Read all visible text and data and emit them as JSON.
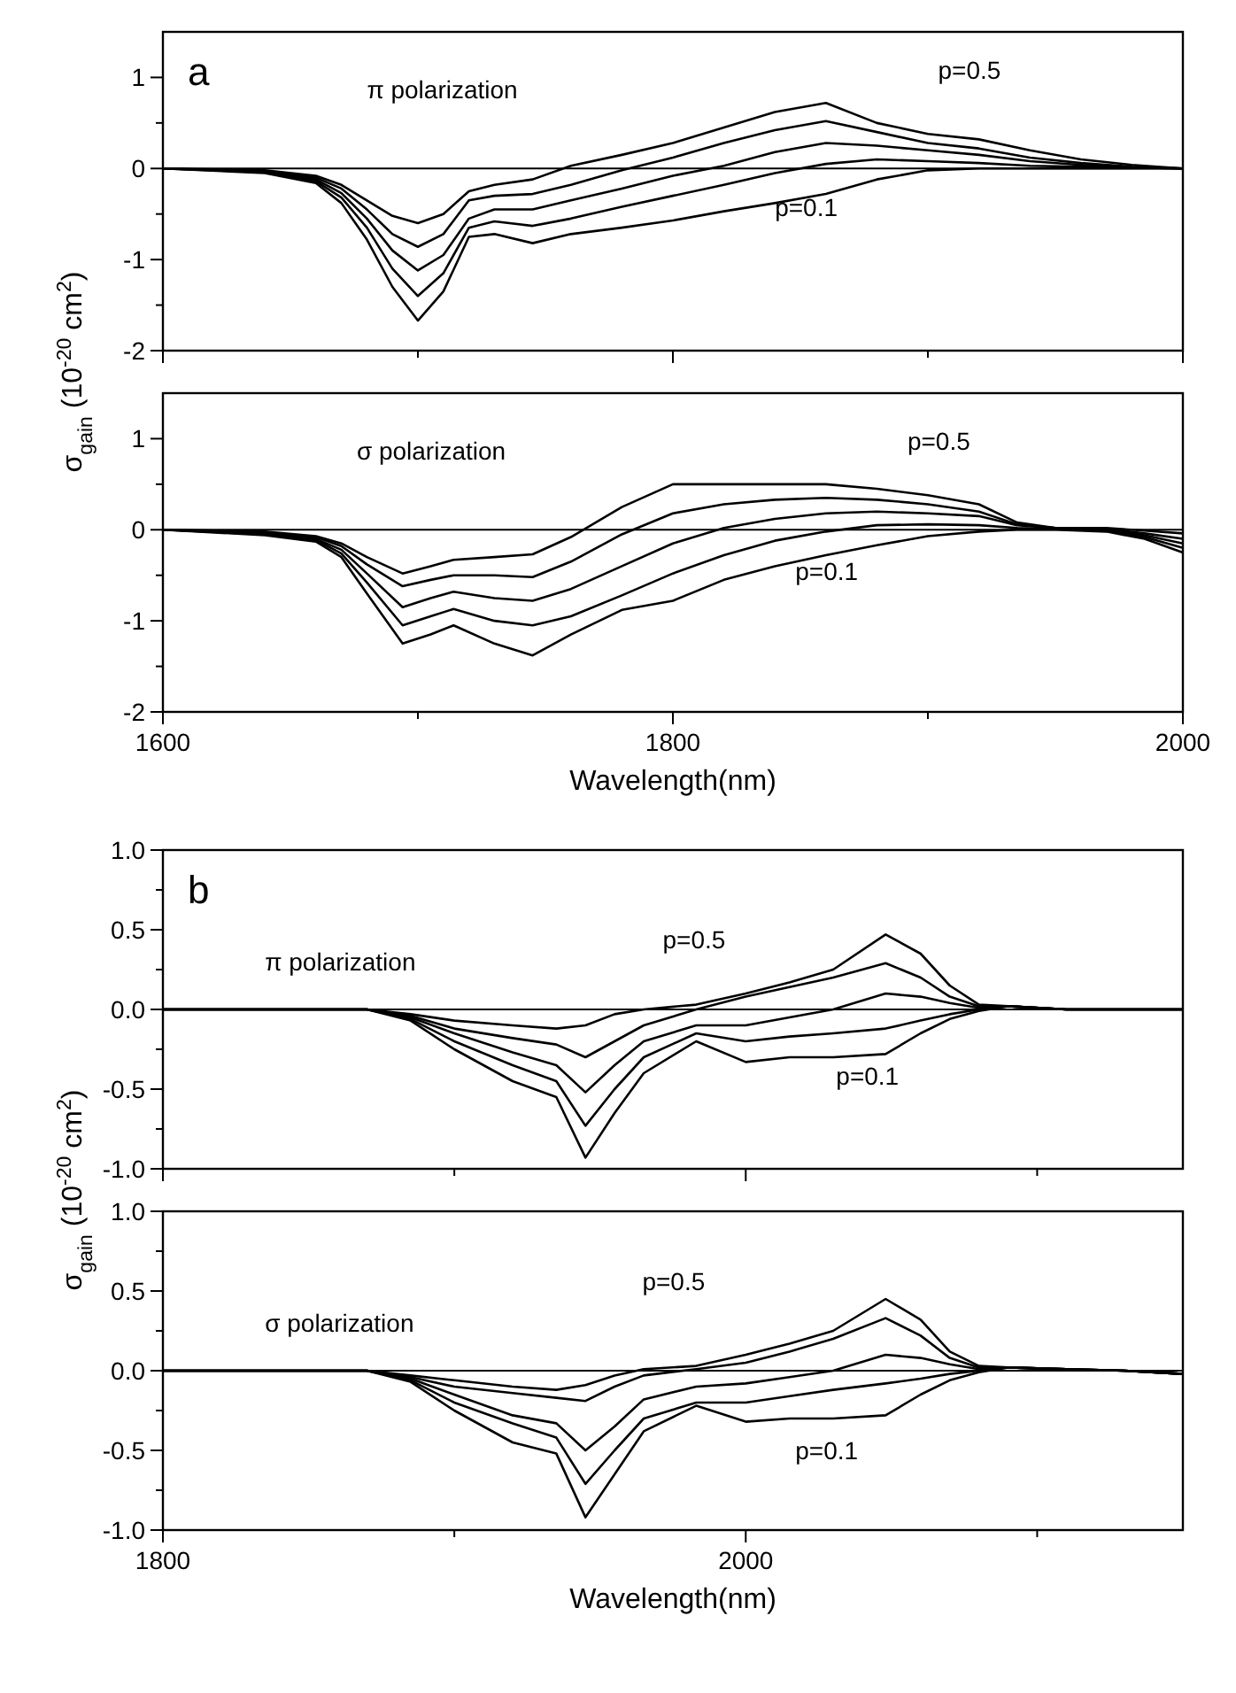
{
  "chart_data": [
    {
      "type": "line",
      "title": "a",
      "ylabel": "σ$_{gain}$ (10$^{-20}$ cm$^{2}$)",
      "tick_labels": "y",
      "xlim": [
        1600,
        2000
      ],
      "ylim": [
        -2,
        1.5
      ],
      "xticks": [
        1600,
        {
          "value": 1700,
          "label": null
        },
        1800,
        {
          "value": 1900,
          "label": null
        },
        2000
      ],
      "yticks": [
        -2,
        {
          "value": -1.5,
          "label": null
        },
        -1,
        {
          "value": -0.5,
          "label": null
        },
        0,
        {
          "value": 0.5,
          "label": null
        },
        1
      ],
      "x": [
        1600,
        1640,
        1660,
        1670,
        1680,
        1690,
        1700,
        1710,
        1720,
        1730,
        1745,
        1760,
        1780,
        1800,
        1820,
        1840,
        1860,
        1880,
        1900,
        1920,
        1940,
        1960,
        1980,
        2000
      ],
      "series": [
        {
          "color": "#000000",
          "values": [
            0,
            -0.02,
            -0.08,
            -0.18,
            -0.35,
            -0.52,
            -0.6,
            -0.5,
            -0.25,
            -0.18,
            -0.12,
            0.03,
            0.15,
            0.28,
            0.45,
            0.62,
            0.72,
            0.5,
            0.38,
            0.32,
            0.2,
            0.1,
            0.04,
            0
          ]
        },
        {
          "color": "#000000",
          "values": [
            0,
            -0.03,
            -0.1,
            -0.22,
            -0.45,
            -0.72,
            -0.86,
            -0.72,
            -0.35,
            -0.3,
            -0.28,
            -0.18,
            -0.02,
            0.12,
            0.28,
            0.42,
            0.52,
            0.4,
            0.28,
            0.22,
            0.12,
            0.06,
            0.02,
            0
          ]
        },
        {
          "color": "#000000",
          "values": [
            0,
            -0.03,
            -0.12,
            -0.27,
            -0.55,
            -0.9,
            -1.12,
            -0.95,
            -0.55,
            -0.45,
            -0.45,
            -0.35,
            -0.22,
            -0.08,
            0.03,
            0.18,
            0.28,
            0.25,
            0.2,
            0.15,
            0.08,
            0.04,
            0.01,
            0
          ]
        },
        {
          "color": "#000000",
          "values": [
            0,
            -0.04,
            -0.14,
            -0.32,
            -0.65,
            -1.1,
            -1.4,
            -1.15,
            -0.65,
            -0.58,
            -0.63,
            -0.55,
            -0.42,
            -0.3,
            -0.18,
            -0.05,
            0.05,
            0.1,
            0.08,
            0.06,
            0.03,
            0.02,
            0.01,
            0
          ]
        },
        {
          "color": "#000000",
          "values": [
            0,
            -0.05,
            -0.16,
            -0.38,
            -0.78,
            -1.3,
            -1.67,
            -1.35,
            -0.75,
            -0.72,
            -0.82,
            -0.72,
            -0.65,
            -0.57,
            -0.47,
            -0.38,
            -0.28,
            -0.12,
            -0.02,
            0,
            0,
            0,
            0,
            0
          ]
        }
      ],
      "ref_lines": [
        {
          "axis": "y",
          "value": 0,
          "color": "#000000"
        }
      ],
      "annotations": [
        "π polarization",
        "p=0.5",
        "p=0.1"
      ]
    },
    {
      "type": "line",
      "xlabel": "Wavelength(nm)",
      "xlim": [
        1600,
        2000
      ],
      "ylim": [
        -2,
        1.5
      ],
      "xticks": [
        1600,
        {
          "value": 1700,
          "label": null
        },
        1800,
        {
          "value": 1900,
          "label": null
        },
        2000
      ],
      "yticks": [
        -2,
        {
          "value": -1.5,
          "label": null
        },
        -1,
        {
          "value": -0.5,
          "label": null
        },
        0,
        {
          "value": 0.5,
          "label": null
        },
        1
      ],
      "x": [
        1600,
        1640,
        1660,
        1670,
        1680,
        1694,
        1705,
        1714,
        1730,
        1745,
        1760,
        1780,
        1800,
        1820,
        1840,
        1860,
        1880,
        1900,
        1920,
        1935,
        1950,
        1970,
        1985,
        2000
      ],
      "series": [
        {
          "color": "#000000",
          "values": [
            0,
            -0.02,
            -0.07,
            -0.15,
            -0.3,
            -0.48,
            -0.4,
            -0.33,
            -0.3,
            -0.27,
            -0.08,
            0.25,
            0.5,
            0.5,
            0.5,
            0.5,
            0.45,
            0.38,
            0.28,
            0.08,
            0.02,
            0.02,
            -0.01,
            -0.04
          ]
        },
        {
          "color": "#000000",
          "values": [
            0,
            -0.03,
            -0.08,
            -0.18,
            -0.38,
            -0.62,
            -0.55,
            -0.5,
            -0.5,
            -0.52,
            -0.35,
            -0.05,
            0.18,
            0.28,
            0.33,
            0.35,
            0.33,
            0.28,
            0.2,
            0.06,
            0.02,
            0.01,
            -0.04,
            -0.1
          ]
        },
        {
          "color": "#000000",
          "values": [
            0,
            -0.04,
            -0.1,
            -0.22,
            -0.48,
            -0.85,
            -0.75,
            -0.68,
            -0.75,
            -0.78,
            -0.65,
            -0.4,
            -0.15,
            0.02,
            0.12,
            0.18,
            0.2,
            0.18,
            0.15,
            0.05,
            0.02,
            0,
            -0.06,
            -0.15
          ]
        },
        {
          "color": "#000000",
          "values": [
            0,
            -0.05,
            -0.11,
            -0.26,
            -0.58,
            -1.05,
            -0.95,
            -0.87,
            -1.0,
            -1.05,
            -0.95,
            -0.72,
            -0.48,
            -0.28,
            -0.12,
            -0.02,
            0.05,
            0.06,
            0.05,
            0.02,
            0.01,
            -0.01,
            -0.08,
            -0.2
          ]
        },
        {
          "color": "#000000",
          "values": [
            0,
            -0.06,
            -0.13,
            -0.3,
            -0.7,
            -1.25,
            -1.15,
            -1.05,
            -1.25,
            -1.38,
            -1.15,
            -0.88,
            -0.78,
            -0.55,
            -0.4,
            -0.28,
            -0.17,
            -0.07,
            -0.02,
            0,
            0,
            -0.02,
            -0.1,
            -0.25
          ]
        }
      ],
      "ref_lines": [
        {
          "axis": "y",
          "value": 0,
          "color": "#000000"
        }
      ],
      "annotations": [
        "σ polarization",
        "p=0.5",
        "p=0.1"
      ]
    },
    {
      "type": "line",
      "title": "b",
      "ylabel": "σ$_{gain}$ (10$^{-20}$ cm$^{2}$)",
      "tick_labels": "y",
      "xlim": [
        1800,
        2150
      ],
      "ylim": [
        -1,
        1
      ],
      "xticks": [
        1800,
        {
          "value": 1900,
          "label": null
        },
        2000,
        {
          "value": 2100,
          "label": null
        }
      ],
      "yticks": [
        {
          "value": -1,
          "label": "-1.0"
        },
        {
          "value": -0.75,
          "label": null
        },
        {
          "value": -0.5,
          "label": "-0.5"
        },
        {
          "value": -0.25,
          "label": null
        },
        {
          "value": 0,
          "label": "0.0"
        },
        {
          "value": 0.25,
          "label": null
        },
        {
          "value": 0.5,
          "label": "0.5"
        },
        {
          "value": 0.75,
          "label": null
        },
        {
          "value": 1,
          "label": "1.0"
        }
      ],
      "x": [
        1800,
        1840,
        1870,
        1885,
        1900,
        1920,
        1935,
        1945,
        1955,
        1965,
        1983,
        2000,
        2015,
        2030,
        2048,
        2060,
        2070,
        2080,
        2090,
        2110,
        2130,
        2150
      ],
      "series": [
        {
          "color": "#000000",
          "values": [
            0,
            0,
            0,
            -0.03,
            -0.07,
            -0.1,
            -0.12,
            -0.1,
            -0.03,
            0,
            0.03,
            0.1,
            0.17,
            0.25,
            0.47,
            0.35,
            0.15,
            0.03,
            0.02,
            0,
            0,
            0
          ]
        },
        {
          "color": "#000000",
          "values": [
            0,
            0,
            0,
            -0.04,
            -0.12,
            -0.18,
            -0.22,
            -0.3,
            -0.2,
            -0.1,
            0,
            0.08,
            0.14,
            0.2,
            0.29,
            0.2,
            0.08,
            0.02,
            0.02,
            0,
            0,
            0
          ]
        },
        {
          "color": "#000000",
          "values": [
            0,
            0,
            0,
            -0.05,
            -0.15,
            -0.27,
            -0.35,
            -0.52,
            -0.35,
            -0.2,
            -0.1,
            -0.1,
            -0.05,
            0,
            0.1,
            0.08,
            0.04,
            0.01,
            0.02,
            0,
            0,
            0
          ]
        },
        {
          "color": "#000000",
          "values": [
            0,
            0,
            0,
            -0.06,
            -0.2,
            -0.35,
            -0.45,
            -0.73,
            -0.5,
            -0.3,
            -0.15,
            -0.2,
            -0.17,
            -0.15,
            -0.12,
            -0.07,
            -0.03,
            0,
            0.02,
            0,
            0,
            0
          ]
        },
        {
          "color": "#000000",
          "values": [
            0,
            0,
            0,
            -0.07,
            -0.25,
            -0.45,
            -0.55,
            -0.93,
            -0.65,
            -0.4,
            -0.2,
            -0.33,
            -0.3,
            -0.3,
            -0.28,
            -0.15,
            -0.06,
            -0.01,
            0.02,
            0,
            0,
            0
          ]
        }
      ],
      "ref_lines": [
        {
          "axis": "y",
          "value": 0,
          "color": "#000000"
        }
      ],
      "annotations": [
        "π polarization",
        "p=0.5",
        "p=0.1"
      ]
    },
    {
      "type": "line",
      "xlabel": "Wavelength(nm)",
      "xlim": [
        1800,
        2150
      ],
      "ylim": [
        -1,
        1
      ],
      "xticks": [
        1800,
        {
          "value": 1900,
          "label": null
        },
        2000,
        {
          "value": 2100,
          "label": null
        }
      ],
      "yticks": [
        {
          "value": -1,
          "label": "-1.0"
        },
        {
          "value": -0.75,
          "label": null
        },
        {
          "value": -0.5,
          "label": "-0.5"
        },
        {
          "value": -0.25,
          "label": null
        },
        {
          "value": 0,
          "label": "0.0"
        },
        {
          "value": 0.25,
          "label": null
        },
        {
          "value": 0.5,
          "label": "0.5"
        },
        {
          "value": 0.75,
          "label": null
        },
        {
          "value": 1,
          "label": "1.0"
        }
      ],
      "x": [
        1800,
        1840,
        1870,
        1885,
        1900,
        1920,
        1935,
        1945,
        1955,
        1965,
        1983,
        2000,
        2015,
        2030,
        2048,
        2060,
        2070,
        2080,
        2090,
        2110,
        2130,
        2150
      ],
      "series": [
        {
          "color": "#000000",
          "values": [
            0,
            0,
            0,
            -0.03,
            -0.06,
            -0.1,
            -0.12,
            -0.09,
            -0.03,
            0.01,
            0.03,
            0.1,
            0.17,
            0.25,
            0.45,
            0.32,
            0.12,
            0.03,
            0.02,
            0.01,
            0,
            -0.02
          ]
        },
        {
          "color": "#000000",
          "values": [
            0,
            0,
            0,
            -0.04,
            -0.1,
            -0.14,
            -0.17,
            -0.19,
            -0.1,
            -0.03,
            0.01,
            0.05,
            0.12,
            0.2,
            0.33,
            0.22,
            0.08,
            0.02,
            0.02,
            0.01,
            0,
            -0.02
          ]
        },
        {
          "color": "#000000",
          "values": [
            0,
            0,
            0,
            -0.05,
            -0.15,
            -0.28,
            -0.33,
            -0.5,
            -0.35,
            -0.18,
            -0.1,
            -0.08,
            -0.04,
            0,
            0.1,
            0.08,
            0.04,
            0.01,
            0.02,
            0.01,
            0,
            -0.02
          ]
        },
        {
          "color": "#000000",
          "values": [
            0,
            0,
            0,
            -0.06,
            -0.2,
            -0.33,
            -0.42,
            -0.71,
            -0.5,
            -0.3,
            -0.2,
            -0.2,
            -0.16,
            -0.12,
            -0.08,
            -0.05,
            -0.02,
            0,
            0.02,
            0.01,
            0,
            -0.02
          ]
        },
        {
          "color": "#000000",
          "values": [
            0,
            0,
            0,
            -0.07,
            -0.25,
            -0.45,
            -0.52,
            -0.92,
            -0.65,
            -0.38,
            -0.22,
            -0.32,
            -0.3,
            -0.3,
            -0.28,
            -0.15,
            -0.06,
            -0.01,
            0.02,
            0.01,
            0,
            -0.02
          ]
        }
      ],
      "ref_lines": [
        {
          "axis": "y",
          "value": 0,
          "color": "#000000"
        }
      ],
      "annotations": [
        "σ polarization",
        "p=0.5",
        "p=0.1"
      ]
    }
  ]
}
